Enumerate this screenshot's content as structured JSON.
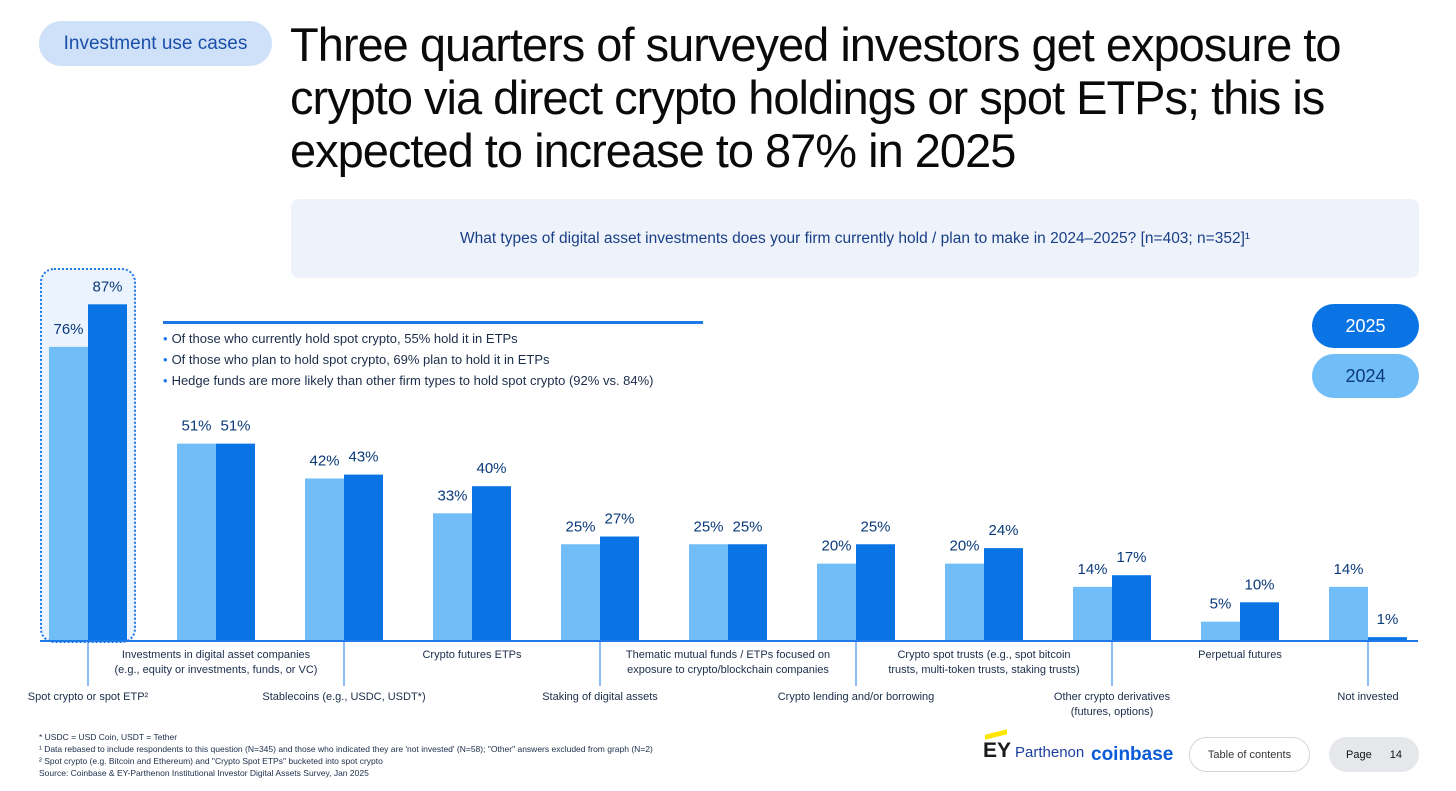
{
  "tag": "Investment use cases",
  "headline": "Three quarters of surveyed investors get exposure to crypto via direct crypto holdings or spot ETPs; this is expected to increase to 87% in 2025",
  "question": "What types of digital asset investments does your firm currently hold / plan to make in 2024–2025? [n=403; n=352]¹",
  "notes": [
    "Of those who currently hold spot crypto, 55% hold it in ETPs",
    "Of those who plan to hold spot crypto, 69% plan to hold it in ETPs",
    "Hedge funds are more likely than other firm types to hold spot crypto (92% vs. 84%)"
  ],
  "legend": {
    "y2025": "2025",
    "y2024": "2024"
  },
  "colors": {
    "y2024": "#71bdf8",
    "y2025": "#0a74e4",
    "axis": "#1f78e8",
    "accent": "#1f78e8"
  },
  "chart_data": {
    "type": "bar",
    "title": "What types of digital asset investments does your firm currently hold / plan to make in 2024–2025?",
    "ylim": [
      0,
      100
    ],
    "categories": [
      [
        "Spot crypto or spot ETP²"
      ],
      [
        "Investments in digital asset companies",
        "(e.g., equity or investments, funds, or VC)"
      ],
      [
        "Stablecoins (e.g., USDC, USDT*)"
      ],
      [
        "Crypto futures ETPs"
      ],
      [
        "Staking of digital assets"
      ],
      [
        "Thematic mutual funds / ETPs focused on",
        "exposure to crypto/blockchain companies"
      ],
      [
        "Crypto lending and/or borrowing"
      ],
      [
        "Crypto spot trusts (e.g., spot bitcoin",
        "trusts, multi-token trusts, staking trusts)"
      ],
      [
        "Other crypto derivatives",
        "(futures, options)"
      ],
      [
        "Perpetual futures"
      ],
      [
        "Not invested"
      ]
    ],
    "label_rows": [
      "bottom",
      "top",
      "bottom",
      "top",
      "bottom",
      "top",
      "bottom",
      "top",
      "bottom",
      "top",
      "bottom"
    ],
    "series": [
      {
        "name": "2024",
        "values": [
          76,
          51,
          42,
          33,
          25,
          25,
          20,
          20,
          14,
          5,
          14
        ]
      },
      {
        "name": "2025",
        "values": [
          87,
          51,
          43,
          40,
          27,
          25,
          25,
          24,
          17,
          10,
          1
        ]
      }
    ],
    "highlighted_category": "Spot crypto or spot ETP²"
  },
  "footnotes": [
    "* USDC = USD Coin, USDT = Tether",
    "¹ Data rebased to include respondents to this question (N=345) and those who indicated they are 'not invested' (N=58); \"Other\" answers excluded from graph (N=2)",
    "² Spot crypto (e.g. Bitcoin and Ethereum) and \"Crypto Spot ETPs\" bucketed into spot crypto",
    "Source: Coinbase & EY-Parthenon Institutional Investor Digital Assets Survey, Jan 2025"
  ],
  "logos": {
    "ey": "EY",
    "ey_sub": "Parthenon",
    "coinbase": "coinbase"
  },
  "nav": {
    "toc": "Table of contents",
    "page_label": "Page",
    "page_number": "14"
  }
}
